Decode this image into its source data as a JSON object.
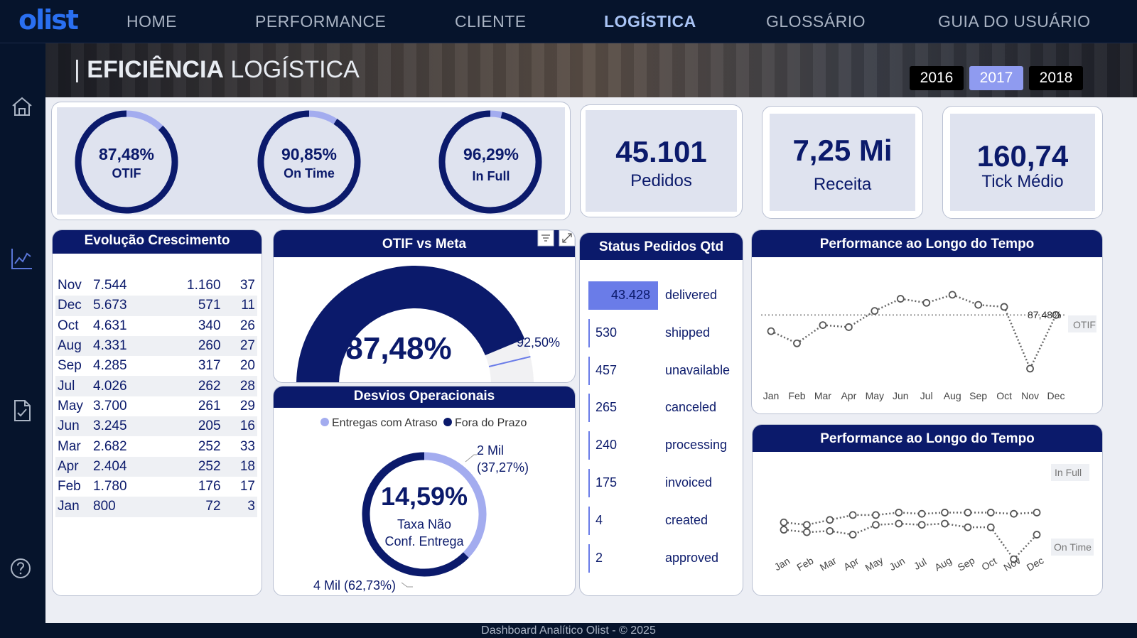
{
  "brand": "olist",
  "nav": [
    "HOME",
    "PERFORMANCE",
    "CLIENTE",
    "LOGÍSTICA",
    "GLOSSÁRIO",
    "GUIA DO USUÁRIO"
  ],
  "page_title_bold": "EFICIÊNCIA",
  "page_title_rest": " LOGÍSTICA",
  "years": [
    "2016",
    "2017",
    "2018"
  ],
  "selected_year": "2017",
  "rings": [
    {
      "value": "87,48%",
      "label": "OTIF",
      "pct": 0.8748
    },
    {
      "value": "90,85%",
      "label": "On Time",
      "pct": 0.9085
    },
    {
      "value": "96,29%",
      "label": "In Full",
      "pct": 0.9629
    }
  ],
  "kpis": [
    {
      "value": "45.101",
      "label": "Pedidos"
    },
    {
      "value": "7,25 Mi",
      "label": "Receita"
    },
    {
      "value": "160,74",
      "label": "Tick Médio"
    }
  ],
  "evolucao": {
    "title": "Evolução Crescimento",
    "rows": [
      [
        "Nov",
        "7.544",
        "1.160",
        "37"
      ],
      [
        "Dec",
        "5.673",
        "571",
        "11"
      ],
      [
        "Oct",
        "4.631",
        "340",
        "26"
      ],
      [
        "Aug",
        "4.331",
        "260",
        "27"
      ],
      [
        "Sep",
        "4.285",
        "317",
        "20"
      ],
      [
        "Jul",
        "4.026",
        "262",
        "28"
      ],
      [
        "May",
        "3.700",
        "261",
        "29"
      ],
      [
        "Jun",
        "3.245",
        "205",
        "16"
      ],
      [
        "Mar",
        "2.682",
        "252",
        "33"
      ],
      [
        "Apr",
        "2.404",
        "252",
        "18"
      ],
      [
        "Feb",
        "1.780",
        "176",
        "17"
      ],
      [
        "Jan",
        "800",
        "72",
        "3"
      ]
    ]
  },
  "otif_meta": {
    "title": "OTIF vs Meta",
    "value": "87,48%",
    "meta": "92,50%",
    "pct": 0.8748,
    "meta_pct": 0.925
  },
  "desvios": {
    "title": "Desvios Operacionais",
    "legend": [
      "Entregas com Atraso",
      "Fora do Prazo"
    ],
    "center_value": "14,59%",
    "center_label_1": "Taxa Não",
    "center_label_2": "Conf. Entrega",
    "slice_a_1": "2 Mil",
    "slice_a_2": "(37,27%)",
    "slice_b": "4 Mil (62,73%)",
    "share_atraso": 0.3727
  },
  "status": {
    "title": "Status Pedidos Qtd",
    "rows": [
      {
        "value": "43.428",
        "label": "delivered",
        "n": 43428
      },
      {
        "value": "530",
        "label": "shipped",
        "n": 530
      },
      {
        "value": "457",
        "label": "unavailable",
        "n": 457
      },
      {
        "value": "265",
        "label": "canceled",
        "n": 265
      },
      {
        "value": "240",
        "label": "processing",
        "n": 240
      },
      {
        "value": "175",
        "label": "invoiced",
        "n": 175
      },
      {
        "value": "4",
        "label": "created",
        "n": 4
      },
      {
        "value": "2",
        "label": "approved",
        "n": 2
      }
    ]
  },
  "perf1": {
    "title": "Performance ao Longo do Tempo",
    "ref_label": "OTIF",
    "last_label": "87,48%"
  },
  "perf2": {
    "title": "Performance ao Longo do Tempo",
    "series_labels": [
      "In Full",
      "On Time"
    ]
  },
  "footer": "Dashboard Analítico Olist - © 2025",
  "chart_data": [
    {
      "type": "line",
      "title": "Performance ao Longo do Tempo",
      "x": [
        "Jan",
        "Feb",
        "Mar",
        "Apr",
        "May",
        "Jun",
        "Jul",
        "Aug",
        "Sep",
        "Oct",
        "Nov",
        "Dec"
      ],
      "series": [
        {
          "name": "OTIF",
          "values": [
            0.86,
            0.8,
            0.89,
            0.88,
            0.96,
            1.02,
            1.0,
            1.04,
            0.99,
            0.98,
            0.675,
            0.94
          ]
        }
      ],
      "reference": 0.94,
      "annotation": "87,48%"
    },
    {
      "type": "line",
      "title": "Performance ao Longo do Tempo",
      "x": [
        "Jan",
        "Feb",
        "Mar",
        "Apr",
        "May",
        "Jun",
        "Jul",
        "Aug",
        "Sep",
        "Oct",
        "Nov",
        "Dec"
      ],
      "series": [
        {
          "name": "In Full",
          "values": [
            0.95,
            0.94,
            0.96,
            0.98,
            0.98,
            0.99,
            0.985,
            0.99,
            0.99,
            0.99,
            0.985,
            0.99
          ]
        },
        {
          "name": "On Time",
          "values": [
            0.92,
            0.91,
            0.915,
            0.9,
            0.94,
            0.945,
            0.94,
            0.945,
            0.93,
            0.93,
            0.8,
            0.9
          ]
        }
      ]
    }
  ]
}
